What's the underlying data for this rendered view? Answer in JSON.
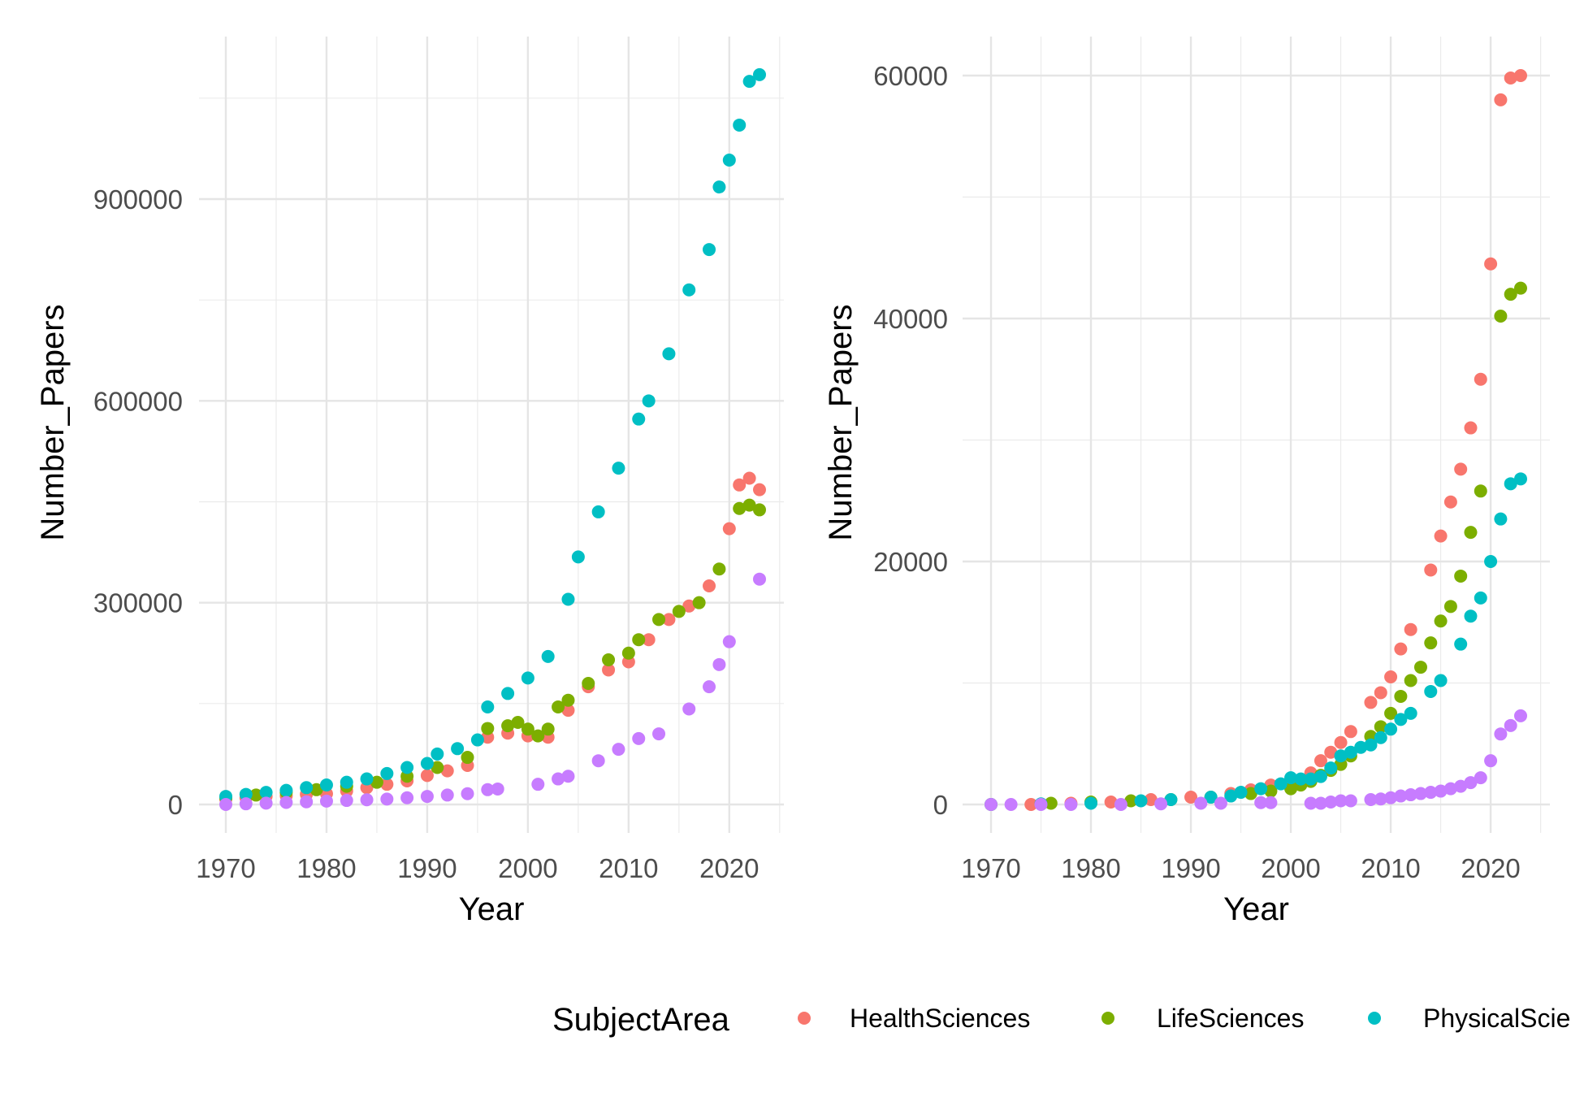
{
  "legend": {
    "title": "SubjectArea",
    "items": [
      {
        "label": "HealthSciences",
        "color": "#F8766D"
      },
      {
        "label": "LifeSciences",
        "color": "#7CAE00"
      },
      {
        "label": "PhysicalScie",
        "color": "#00BFC4"
      }
    ]
  },
  "chart_data": [
    {
      "type": "scatter",
      "xlabel": "Year",
      "ylabel": "Number_Papers",
      "xlim": [
        1970,
        2023
      ],
      "ylim": [
        0,
        1080000
      ],
      "xticks": [
        1970,
        1980,
        1990,
        2000,
        2010,
        2020
      ],
      "yticks": [
        0,
        300000,
        600000,
        900000
      ],
      "grid": true,
      "series": [
        {
          "name": "HealthSciences",
          "color": "#F8766D",
          "x": [
            1970,
            1972,
            1974,
            1976,
            1978,
            1980,
            1982,
            1984,
            1986,
            1988,
            1990,
            1992,
            1994,
            1996,
            1998,
            2000,
            2002,
            2004,
            2006,
            2008,
            2010,
            2012,
            2014,
            2016,
            2018,
            2020,
            2021,
            2022,
            2023
          ],
          "y": [
            8000,
            10000,
            12000,
            13000,
            15000,
            16000,
            20000,
            25000,
            30000,
            35000,
            43000,
            50000,
            58000,
            100000,
            106000,
            102000,
            100000,
            140000,
            175000,
            200000,
            212000,
            245000,
            275000,
            295000,
            325000,
            410000,
            475000,
            485000,
            468000
          ]
        },
        {
          "name": "LifeSciences",
          "color": "#7CAE00",
          "x": [
            1970,
            1973,
            1976,
            1979,
            1982,
            1985,
            1988,
            1991,
            1994,
            1996,
            1998,
            1999,
            2000,
            2001,
            2002,
            2003,
            2004,
            2006,
            2008,
            2010,
            2011,
            2013,
            2015,
            2017,
            2019,
            2021,
            2022,
            2023
          ],
          "y": [
            10000,
            14000,
            18000,
            22000,
            27000,
            33000,
            42000,
            55000,
            70000,
            113000,
            117000,
            122000,
            112000,
            102000,
            112000,
            145000,
            155000,
            180000,
            215000,
            225000,
            245000,
            275000,
            287000,
            300000,
            350000,
            440000,
            445000,
            438000
          ]
        },
        {
          "name": "PhysicalSciences",
          "color": "#00BFC4",
          "x": [
            1970,
            1972,
            1974,
            1976,
            1978,
            1980,
            1982,
            1984,
            1986,
            1988,
            1990,
            1991,
            1993,
            1995,
            1996,
            1998,
            2000,
            2002,
            2004,
            2005,
            2007,
            2009,
            2011,
            2012,
            2014,
            2016,
            2018,
            2019,
            2020,
            2021,
            2022,
            2023
          ],
          "y": [
            12000,
            15000,
            18000,
            21000,
            25000,
            29000,
            33000,
            38000,
            46000,
            55000,
            61000,
            75000,
            83000,
            96000,
            145000,
            165000,
            188000,
            220000,
            305000,
            368000,
            435000,
            500000,
            573000,
            600000,
            670000,
            765000,
            825000,
            918000,
            958000,
            1010000,
            1075000,
            1085000
          ]
        },
        {
          "name": "",
          "color": "#C77CFF",
          "x": [
            1970,
            1972,
            1974,
            1976,
            1978,
            1980,
            1982,
            1984,
            1986,
            1988,
            1990,
            1992,
            1994,
            1996,
            1997,
            2001,
            2003,
            2004,
            2007,
            2009,
            2011,
            2013,
            2016,
            2018,
            2019,
            2020,
            2023
          ],
          "y": [
            0,
            1000,
            2000,
            3000,
            4000,
            5000,
            6000,
            7000,
            8000,
            10000,
            12000,
            14000,
            16000,
            22000,
            23000,
            30000,
            38000,
            42000,
            65000,
            82000,
            98000,
            105000,
            142000,
            175000,
            208000,
            242000,
            335000
          ]
        }
      ]
    },
    {
      "type": "scatter",
      "xlabel": "Year",
      "ylabel": "Number_Papers",
      "xlim": [
        1970,
        2023
      ],
      "ylim": [
        0,
        60000
      ],
      "xticks": [
        1970,
        1980,
        1990,
        2000,
        2010,
        2020
      ],
      "yticks": [
        0,
        20000,
        40000,
        60000
      ],
      "grid": true,
      "series": [
        {
          "name": "HealthSciences",
          "color": "#F8766D",
          "x": [
            1970,
            1974,
            1978,
            1982,
            1986,
            1990,
            1994,
            1996,
            1998,
            2000,
            2002,
            2003,
            2004,
            2005,
            2006,
            2008,
            2009,
            2010,
            2011,
            2012,
            2014,
            2015,
            2016,
            2017,
            2018,
            2019,
            2020,
            2021,
            2022,
            2023
          ],
          "y": [
            0,
            0,
            100,
            200,
            400,
            600,
            900,
            1200,
            1600,
            2000,
            2600,
            3600,
            4300,
            5100,
            6000,
            8400,
            9200,
            10500,
            12800,
            14400,
            19300,
            22100,
            24900,
            27600,
            31000,
            35000,
            44500,
            58000,
            59800,
            60000
          ]
        },
        {
          "name": "LifeSciences",
          "color": "#7CAE00",
          "x": [
            1970,
            1976,
            1980,
            1984,
            1988,
            1992,
            1996,
            1998,
            2000,
            2001,
            2002,
            2003,
            2004,
            2005,
            2006,
            2008,
            2009,
            2010,
            2011,
            2012,
            2013,
            2014,
            2015,
            2016,
            2017,
            2018,
            2019,
            2021,
            2022,
            2023
          ],
          "y": [
            0,
            100,
            200,
            300,
            400,
            600,
            900,
            1100,
            1300,
            1600,
            1900,
            2400,
            2800,
            3300,
            4000,
            5600,
            6400,
            7500,
            8900,
            10200,
            11300,
            13300,
            15100,
            16300,
            18800,
            22400,
            25800,
            40200,
            42000,
            42500
          ]
        },
        {
          "name": "PhysicalSciences",
          "color": "#00BFC4",
          "x": [
            1970,
            1975,
            1980,
            1985,
            1988,
            1992,
            1994,
            1995,
            1997,
            1999,
            2000,
            2001,
            2002,
            2003,
            2004,
            2005,
            2006,
            2007,
            2008,
            2009,
            2010,
            2011,
            2012,
            2014,
            2015,
            2017,
            2018,
            2019,
            2020,
            2021,
            2022,
            2023
          ],
          "y": [
            0,
            50,
            100,
            300,
            400,
            600,
            700,
            1000,
            1300,
            1700,
            2200,
            2100,
            2100,
            2300,
            3000,
            4000,
            4300,
            4700,
            4900,
            5500,
            6200,
            7000,
            7500,
            9300,
            10200,
            13200,
            15500,
            17000,
            20000,
            23500,
            26400,
            26800
          ]
        },
        {
          "name": "",
          "color": "#C77CFF",
          "x": [
            1970,
            1972,
            1975,
            1978,
            1983,
            1987,
            1991,
            1993,
            1997,
            1998,
            2002,
            2003,
            2004,
            2005,
            2006,
            2008,
            2009,
            2010,
            2011,
            2012,
            2013,
            2014,
            2015,
            2016,
            2017,
            2018,
            2019,
            2020,
            2021,
            2022,
            2023
          ],
          "y": [
            0,
            0,
            0,
            0,
            0,
            50,
            100,
            100,
            150,
            150,
            100,
            100,
            200,
            300,
            300,
            400,
            450,
            550,
            700,
            800,
            900,
            1000,
            1100,
            1300,
            1500,
            1800,
            2200,
            3600,
            5800,
            6500,
            7300
          ]
        }
      ]
    }
  ]
}
